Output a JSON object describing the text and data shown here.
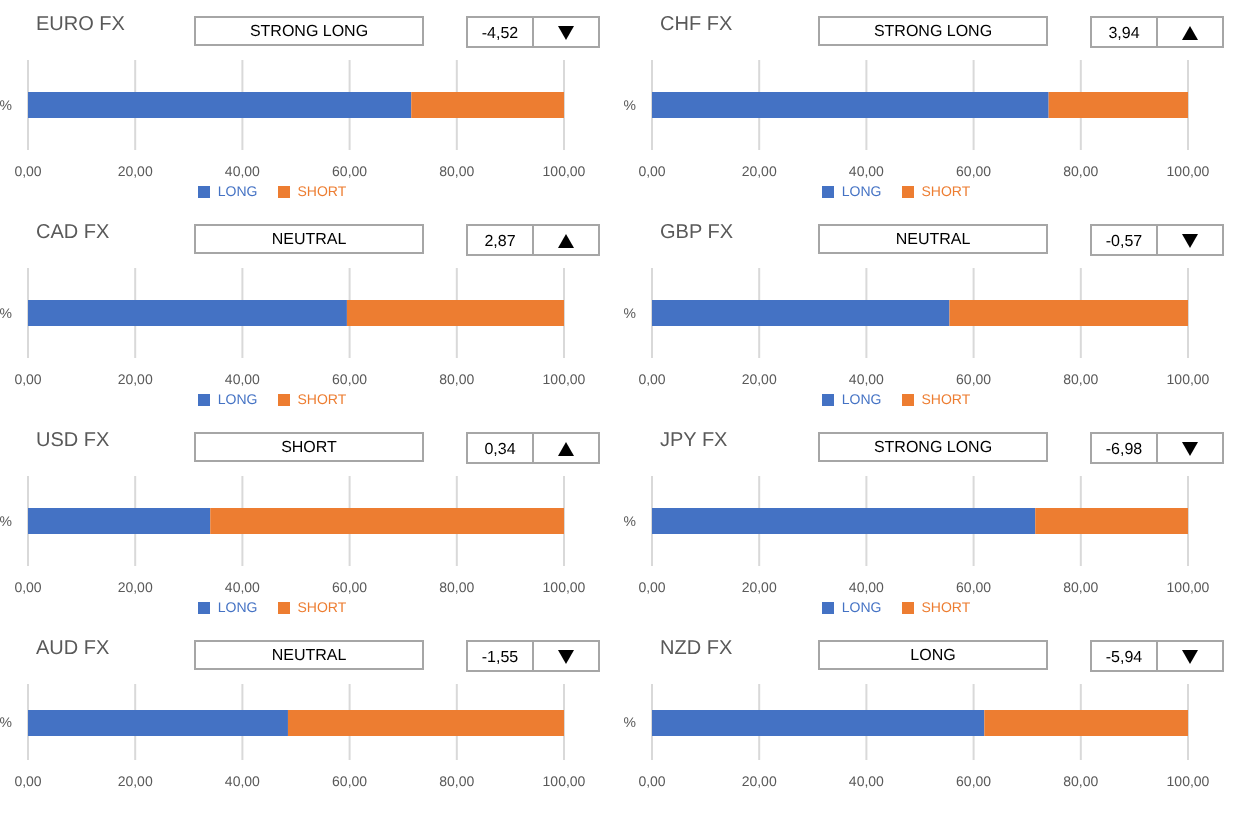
{
  "chart_data": [
    {
      "type": "bar",
      "title": "EURO FX",
      "orientation": "horizontal",
      "stacked": true,
      "categories": [
        "%"
      ],
      "series": [
        {
          "name": "LONG",
          "color": "#4472c4",
          "values": [
            71.5
          ]
        },
        {
          "name": "SHORT",
          "color": "#ed7d31",
          "values": [
            28.5
          ]
        }
      ],
      "xlim": [
        0,
        100
      ],
      "xticks": [
        {
          "value": 0,
          "label": "0,00"
        },
        {
          "value": 20,
          "label": "20,00"
        },
        {
          "value": 40,
          "label": "40,00"
        },
        {
          "value": 60,
          "label": "60,00"
        },
        {
          "value": 80,
          "label": "80,00"
        },
        {
          "value": 100,
          "label": "100,00"
        }
      ],
      "grid": "x",
      "legend": "bottom",
      "annotations": [
        "STRONG LONG",
        "-4,52"
      ]
    },
    {
      "type": "bar",
      "title": "CHF FX",
      "orientation": "horizontal",
      "stacked": true,
      "categories": [
        "%"
      ],
      "series": [
        {
          "name": "LONG",
          "color": "#4472c4",
          "values": [
            74
          ]
        },
        {
          "name": "SHORT",
          "color": "#ed7d31",
          "values": [
            26
          ]
        }
      ],
      "xlim": [
        0,
        100
      ],
      "xticks": [
        {
          "value": 0,
          "label": "0,00"
        },
        {
          "value": 20,
          "label": "20,00"
        },
        {
          "value": 40,
          "label": "40,00"
        },
        {
          "value": 60,
          "label": "60,00"
        },
        {
          "value": 80,
          "label": "80,00"
        },
        {
          "value": 100,
          "label": "100,00"
        }
      ],
      "grid": "x",
      "legend": "bottom",
      "annotations": [
        "STRONG LONG",
        "3,94"
      ]
    },
    {
      "type": "bar",
      "title": "CAD FX",
      "orientation": "horizontal",
      "stacked": true,
      "categories": [
        "%"
      ],
      "series": [
        {
          "name": "LONG",
          "color": "#4472c4",
          "values": [
            59.5
          ]
        },
        {
          "name": "SHORT",
          "color": "#ed7d31",
          "values": [
            40.5
          ]
        }
      ],
      "xlim": [
        0,
        100
      ],
      "xticks": [
        {
          "value": 0,
          "label": "0,00"
        },
        {
          "value": 20,
          "label": "20,00"
        },
        {
          "value": 40,
          "label": "40,00"
        },
        {
          "value": 60,
          "label": "60,00"
        },
        {
          "value": 80,
          "label": "80,00"
        },
        {
          "value": 100,
          "label": "100,00"
        }
      ],
      "grid": "x",
      "legend": "bottom",
      "annotations": [
        "NEUTRAL",
        "2,87"
      ]
    },
    {
      "type": "bar",
      "title": "GBP FX",
      "orientation": "horizontal",
      "stacked": true,
      "categories": [
        "%"
      ],
      "series": [
        {
          "name": "LONG",
          "color": "#4472c4",
          "values": [
            55.5
          ]
        },
        {
          "name": "SHORT",
          "color": "#ed7d31",
          "values": [
            44.5
          ]
        }
      ],
      "xlim": [
        0,
        100
      ],
      "xticks": [
        {
          "value": 0,
          "label": "0,00"
        },
        {
          "value": 20,
          "label": "20,00"
        },
        {
          "value": 40,
          "label": "40,00"
        },
        {
          "value": 60,
          "label": "60,00"
        },
        {
          "value": 80,
          "label": "80,00"
        },
        {
          "value": 100,
          "label": "100,00"
        }
      ],
      "grid": "x",
      "legend": "bottom",
      "annotations": [
        "NEUTRAL",
        "-0,57"
      ]
    },
    {
      "type": "bar",
      "title": "USD FX",
      "orientation": "horizontal",
      "stacked": true,
      "categories": [
        "%"
      ],
      "series": [
        {
          "name": "LONG",
          "color": "#4472c4",
          "values": [
            34
          ]
        },
        {
          "name": "SHORT",
          "color": "#ed7d31",
          "values": [
            66
          ]
        }
      ],
      "xlim": [
        0,
        100
      ],
      "xticks": [
        {
          "value": 0,
          "label": "0,00"
        },
        {
          "value": 20,
          "label": "20,00"
        },
        {
          "value": 40,
          "label": "40,00"
        },
        {
          "value": 60,
          "label": "60,00"
        },
        {
          "value": 80,
          "label": "80,00"
        },
        {
          "value": 100,
          "label": "100,00"
        }
      ],
      "grid": "x",
      "legend": "bottom",
      "annotations": [
        "SHORT",
        "0,34"
      ]
    },
    {
      "type": "bar",
      "title": "JPY FX",
      "orientation": "horizontal",
      "stacked": true,
      "categories": [
        "%"
      ],
      "series": [
        {
          "name": "LONG",
          "color": "#4472c4",
          "values": [
            71.5
          ]
        },
        {
          "name": "SHORT",
          "color": "#ed7d31",
          "values": [
            28.5
          ]
        }
      ],
      "xlim": [
        0,
        100
      ],
      "xticks": [
        {
          "value": 0,
          "label": "0,00"
        },
        {
          "value": 20,
          "label": "20,00"
        },
        {
          "value": 40,
          "label": "40,00"
        },
        {
          "value": 60,
          "label": "60,00"
        },
        {
          "value": 80,
          "label": "80,00"
        },
        {
          "value": 100,
          "label": "100,00"
        }
      ],
      "grid": "x",
      "legend": "bottom",
      "annotations": [
        "STRONG LONG",
        "-6,98"
      ]
    },
    {
      "type": "bar",
      "title": "AUD FX",
      "orientation": "horizontal",
      "stacked": true,
      "categories": [
        "%"
      ],
      "series": [
        {
          "color": "#4472c4",
          "values": [
            48.5
          ]
        },
        {
          "color": "#ed7d31",
          "values": [
            51.5
          ]
        }
      ],
      "xlim": [
        0,
        100
      ],
      "xticks": [
        {
          "value": 0,
          "label": "0,00"
        },
        {
          "value": 20,
          "label": "20,00"
        },
        {
          "value": 40,
          "label": "40,00"
        },
        {
          "value": 60,
          "label": "60,00"
        },
        {
          "value": 80,
          "label": "80,00"
        },
        {
          "value": 100,
          "label": "100,00"
        }
      ],
      "grid": "x",
      "annotations": [
        "NEUTRAL",
        "-1,55"
      ]
    },
    {
      "type": "bar",
      "title": "NZD FX",
      "orientation": "horizontal",
      "stacked": true,
      "categories": [
        "%"
      ],
      "series": [
        {
          "color": "#4472c4",
          "values": [
            62
          ]
        },
        {
          "color": "#ed7d31",
          "values": [
            38
          ]
        }
      ],
      "xlim": [
        0,
        100
      ],
      "xticks": [
        {
          "value": 0,
          "label": "0,00"
        },
        {
          "value": 20,
          "label": "20,00"
        },
        {
          "value": 40,
          "label": "40,00"
        },
        {
          "value": 60,
          "label": "60,00"
        },
        {
          "value": 80,
          "label": "80,00"
        },
        {
          "value": 100,
          "label": "100,00"
        }
      ],
      "grid": "x",
      "annotations": [
        "LONG",
        "-5,94"
      ]
    }
  ]
}
